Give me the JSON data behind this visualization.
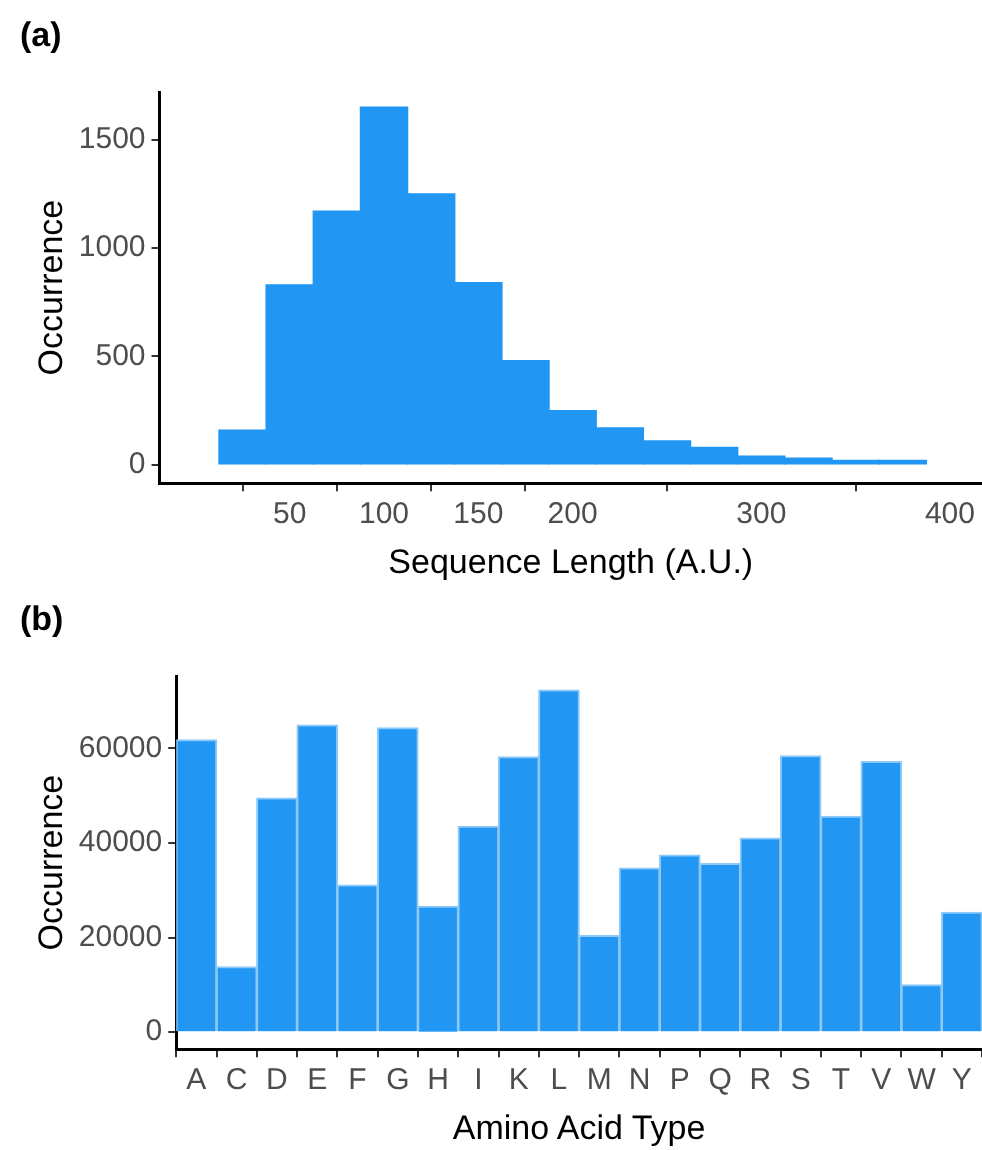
{
  "chart_data": [
    {
      "type": "histogram",
      "title": "(a)",
      "xlabel": "Sequence Length (A.U.)",
      "ylabel": "Occurrence",
      "color": "#2196f3",
      "bins": [
        12.5,
        37.5,
        62.5,
        87.5,
        112.5,
        137.5,
        162.5,
        187.5,
        212.5,
        237.5,
        262.5,
        287.5,
        312.5,
        337.5,
        362.5,
        387.5
      ],
      "values": [
        160,
        830,
        1170,
        1650,
        1250,
        840,
        480,
        250,
        170,
        110,
        80,
        40,
        30,
        20,
        20
      ],
      "xlim": [
        -19,
        417
      ],
      "xticks": [
        50,
        100,
        150,
        200,
        300,
        400
      ],
      "ylim": [
        -85,
        1720
      ],
      "yticks": [
        0,
        500,
        1000,
        1500
      ]
    },
    {
      "type": "bar",
      "title": "(b)",
      "xlabel": "Amino Acid Type",
      "ylabel": "Occurrence",
      "color": "#2196f3",
      "categories": [
        "A",
        "C",
        "D",
        "E",
        "F",
        "G",
        "H",
        "I",
        "K",
        "L",
        "M",
        "N",
        "P",
        "Q",
        "R",
        "S",
        "T",
        "V",
        "W",
        "Y"
      ],
      "values": [
        61800,
        13800,
        49500,
        64900,
        31100,
        64300,
        26600,
        43500,
        58200,
        72300,
        20400,
        34700,
        37400,
        35600,
        41000,
        58400,
        45600,
        57200,
        10000,
        25300
      ],
      "ylim": [
        -3600,
        75300
      ],
      "yticks": [
        0,
        20000,
        40000,
        60000
      ]
    }
  ]
}
